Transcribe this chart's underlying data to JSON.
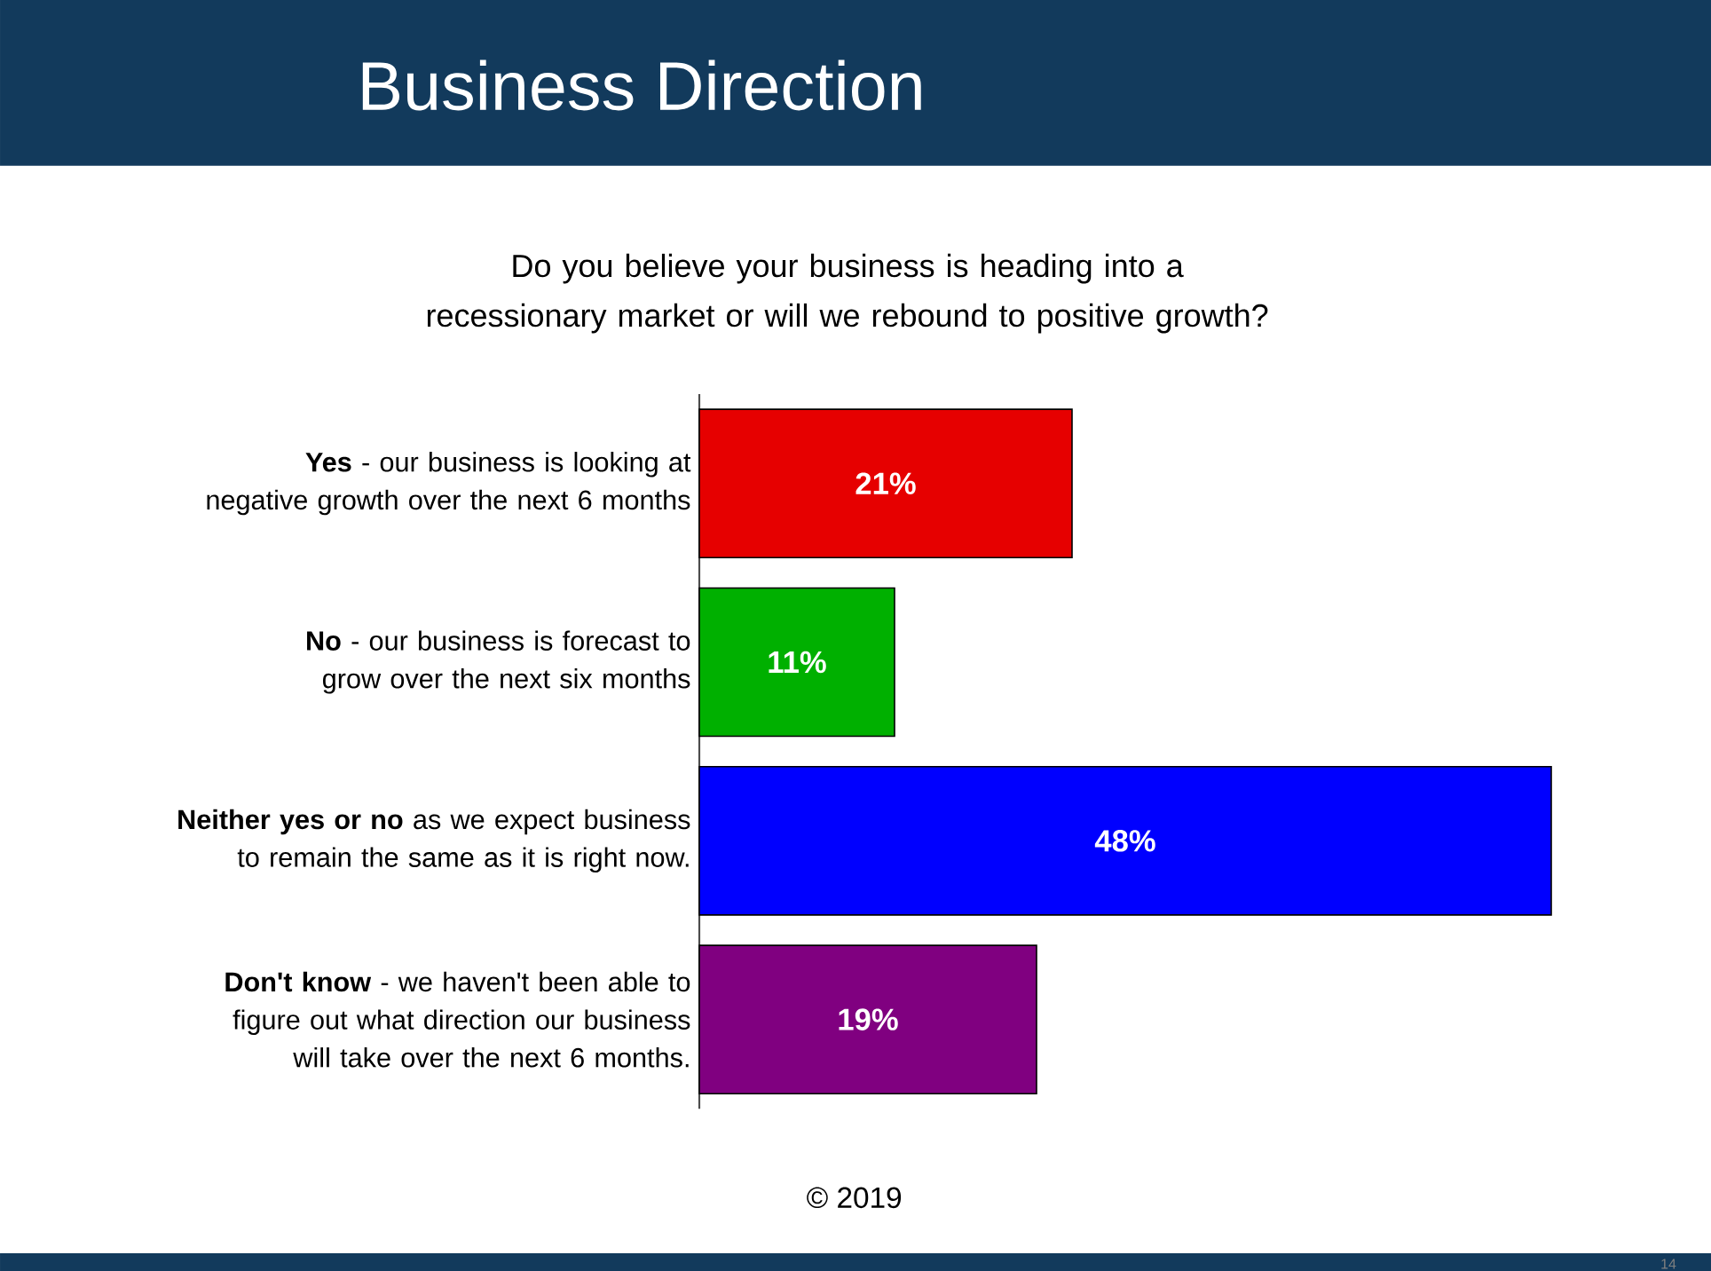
{
  "chart_data": {
    "type": "bar",
    "orientation": "horizontal",
    "title": "Business Direction",
    "subtitle": "Do you believe your business is heading into a recessionary market or will we rebound to positive growth?",
    "categories": [
      "**Yes** - our business is looking at negative growth over the next 6 months",
      "**No** - our business is forecast to grow over the next six months",
      "**Neither yes or no** as we expect business to remain the same as it is right now.",
      "**Don't know** - we haven't been able to figure out what direction our business will take over the next 6 months."
    ],
    "values": [
      21,
      11,
      48,
      19
    ],
    "colors": [
      "#e60000",
      "#00b000",
      "#0000ff",
      "#800080"
    ],
    "value_labels": [
      "21%",
      "11%",
      "48%",
      "19%"
    ],
    "annotations": [
      "© 2019",
      "14"
    ]
  }
}
